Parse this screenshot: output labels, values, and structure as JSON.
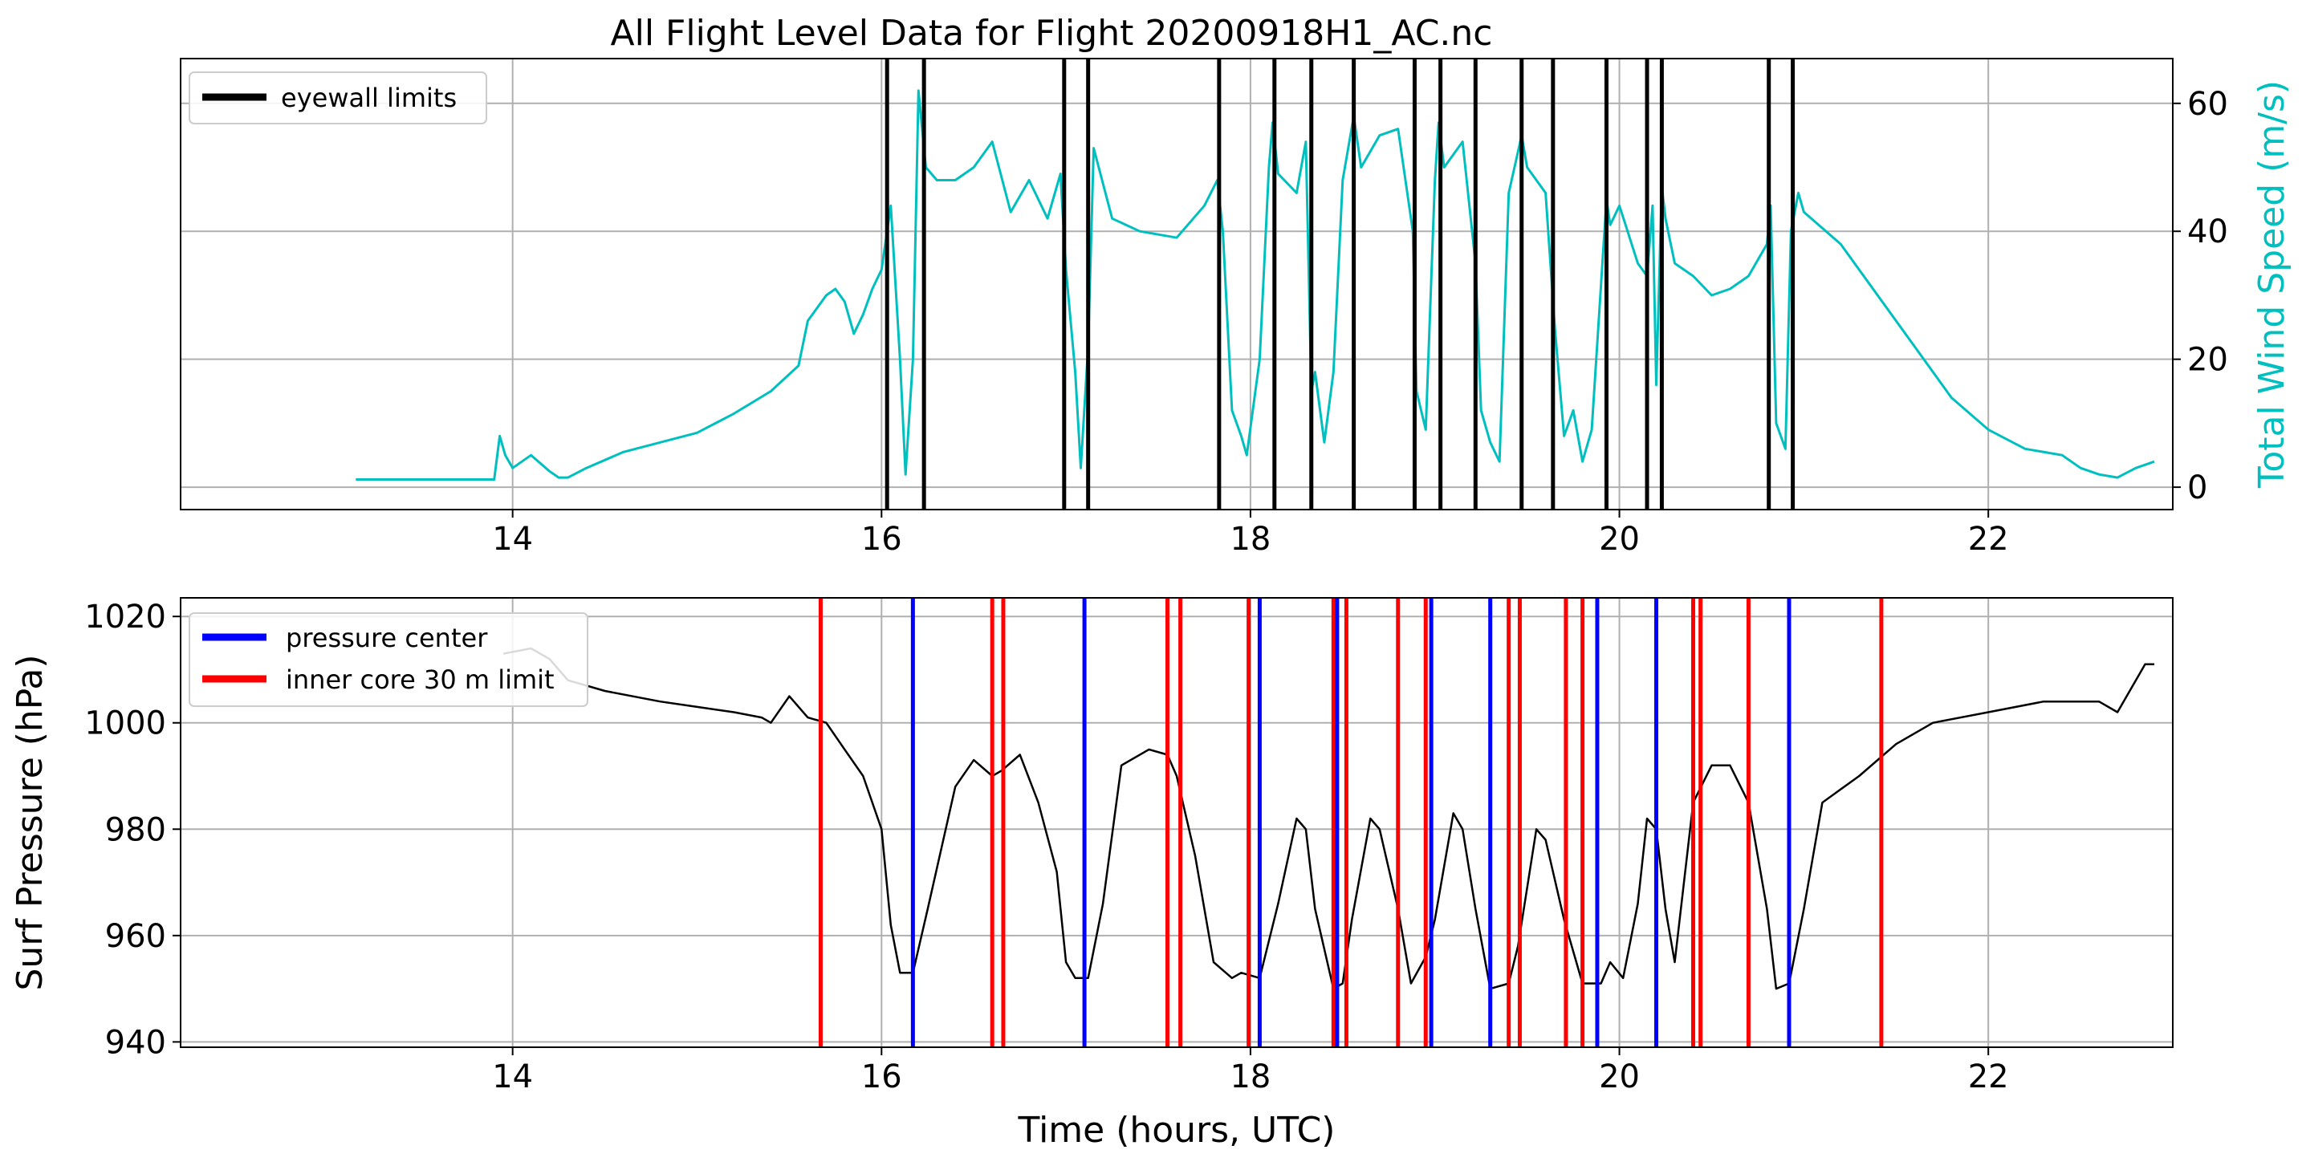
{
  "title": "All Flight Level Data for Flight 20200918H1_AC.nc",
  "colors": {
    "wind": "#00bfbf",
    "pressure": "#000000",
    "eyewall": "#000000",
    "center": "#0000ff",
    "inner_core": "#ff0000",
    "grid": "#b0b0b0"
  },
  "chart_data": [
    {
      "type": "line",
      "panel": "top",
      "ylabel": "Total Wind Speed (m/s)",
      "ylabel_side": "right",
      "xlim": [
        12.2,
        23.0
      ],
      "ylim": [
        -3.5,
        67
      ],
      "xticks": [
        14,
        16,
        18,
        20,
        22
      ],
      "xtick_labels": [
        "14",
        "16",
        "18",
        "20",
        "22"
      ],
      "yticks": [
        0,
        20,
        40,
        60
      ],
      "ytick_labels": [
        "0",
        "20",
        "40",
        "60"
      ],
      "grid": true,
      "legend": {
        "placement": "top-left",
        "entries": [
          {
            "label": "eyewall limits",
            "color": "#000000"
          }
        ]
      },
      "series": [
        {
          "name": "",
          "color": "#00bfbf",
          "x": [
            13.15,
            13.9,
            13.93,
            13.96,
            14.0,
            14.1,
            14.2,
            14.25,
            14.3,
            14.4,
            14.6,
            14.8,
            15.0,
            15.2,
            15.4,
            15.55,
            15.6,
            15.7,
            15.75,
            15.8,
            15.85,
            15.9,
            15.95,
            16.0,
            16.05,
            16.1,
            16.13,
            16.17,
            16.2,
            16.24,
            16.3,
            16.4,
            16.5,
            16.6,
            16.7,
            16.8,
            16.9,
            16.97,
            17.0,
            17.05,
            17.08,
            17.12,
            17.15,
            17.25,
            17.4,
            17.6,
            17.75,
            17.82,
            17.85,
            17.9,
            17.95,
            17.98,
            18.05,
            18.1,
            18.12,
            18.15,
            18.25,
            18.3,
            18.33,
            18.35,
            18.4,
            18.45,
            18.5,
            18.56,
            18.6,
            18.7,
            18.8,
            18.88,
            18.9,
            18.95,
            19.0,
            19.02,
            19.05,
            19.15,
            19.22,
            19.25,
            19.3,
            19.35,
            19.4,
            19.47,
            19.5,
            19.6,
            19.65,
            19.7,
            19.75,
            19.8,
            19.85,
            19.93,
            19.95,
            20.0,
            20.1,
            20.15,
            20.18,
            20.2,
            20.23,
            20.25,
            20.3,
            20.4,
            20.5,
            20.6,
            20.7,
            20.8,
            20.82,
            20.85,
            20.9,
            20.93,
            20.97,
            21.0,
            21.2,
            21.4,
            21.6,
            21.8,
            22.0,
            22.2,
            22.4,
            22.5,
            22.6,
            22.7,
            22.8,
            22.9
          ],
          "values": [
            1.2,
            1.2,
            8,
            5,
            3,
            5,
            2.5,
            1.5,
            1.5,
            3,
            5.5,
            7,
            8.5,
            11.5,
            15,
            19,
            26,
            30,
            31,
            29,
            24,
            27,
            31,
            34,
            44,
            20,
            2,
            20,
            62,
            50,
            48,
            48,
            50,
            54,
            43,
            48,
            42,
            49,
            34,
            18,
            3,
            22,
            53,
            42,
            40,
            39,
            44,
            48,
            40,
            12,
            8,
            5,
            20,
            50,
            57,
            49,
            46,
            54,
            15,
            18,
            7,
            18,
            48,
            58,
            50,
            55,
            56,
            40,
            15,
            9,
            48,
            57,
            50,
            54,
            35,
            12,
            7,
            4,
            46,
            55,
            50,
            46,
            25,
            8,
            12,
            4,
            9,
            45,
            41,
            44,
            35,
            33,
            44,
            16,
            47,
            42,
            35,
            33,
            30,
            31,
            33,
            38,
            44,
            10,
            6,
            40,
            46,
            43,
            38,
            30,
            22,
            14,
            9,
            6,
            5,
            3,
            2,
            1.5,
            3,
            4
          ]
        }
      ],
      "eyewall_limits_x": [
        16.03,
        16.23,
        16.99,
        17.12,
        17.83,
        18.13,
        18.33,
        18.56,
        18.89,
        19.03,
        19.22,
        19.47,
        19.64,
        19.93,
        20.15,
        20.23,
        20.81,
        20.94
      ]
    },
    {
      "type": "line",
      "panel": "bottom",
      "xlabel": "Time (hours, UTC)",
      "ylabel": "Surf Pressure (hPa)",
      "xlim": [
        12.2,
        23.0
      ],
      "ylim": [
        939,
        1023.5
      ],
      "xticks": [
        14,
        16,
        18,
        20,
        22
      ],
      "xtick_labels": [
        "14",
        "16",
        "18",
        "20",
        "22"
      ],
      "yticks": [
        940,
        960,
        980,
        1000,
        1020
      ],
      "ytick_labels": [
        "940",
        "960",
        "980",
        "1000",
        "1020"
      ],
      "grid": true,
      "legend": {
        "placement": "top-left",
        "entries": [
          {
            "label": "pressure center",
            "color": "#0000ff"
          },
          {
            "label": "inner core 30 m limit",
            "color": "#ff0000"
          }
        ]
      },
      "series": [
        {
          "name": "",
          "color": "#000000",
          "x": [
            13.95,
            14.1,
            14.2,
            14.3,
            14.5,
            14.8,
            15.0,
            15.2,
            15.35,
            15.4,
            15.5,
            15.6,
            15.7,
            15.8,
            15.9,
            16.0,
            16.05,
            16.1,
            16.17,
            16.25,
            16.4,
            16.5,
            16.6,
            16.65,
            16.75,
            16.85,
            16.95,
            17.0,
            17.05,
            17.12,
            17.2,
            17.3,
            17.45,
            17.55,
            17.6,
            17.7,
            17.8,
            17.9,
            17.95,
            18.05,
            18.15,
            18.25,
            18.3,
            18.35,
            18.45,
            18.5,
            18.55,
            18.65,
            18.7,
            18.8,
            18.87,
            18.95,
            19.0,
            19.1,
            19.15,
            19.22,
            19.3,
            19.4,
            19.45,
            19.55,
            19.6,
            19.7,
            19.8,
            19.9,
            19.95,
            20.02,
            20.1,
            20.15,
            20.2,
            20.25,
            20.3,
            20.4,
            20.5,
            20.6,
            20.7,
            20.8,
            20.85,
            20.92,
            21.0,
            21.1,
            21.3,
            21.5,
            21.7,
            22.0,
            22.3,
            22.6,
            22.7,
            22.8,
            22.85,
            22.9
          ],
          "values": [
            1013,
            1014,
            1012,
            1008,
            1006,
            1004,
            1003,
            1002,
            1001,
            1000,
            1005,
            1001,
            1000,
            995,
            990,
            980,
            962,
            953,
            953,
            965,
            988,
            993,
            990,
            991,
            994,
            985,
            972,
            955,
            952,
            952,
            966,
            992,
            995,
            994,
            990,
            975,
            955,
            952,
            953,
            952,
            966,
            982,
            980,
            965,
            950,
            951,
            963,
            982,
            980,
            965,
            951,
            956,
            963,
            983,
            980,
            965,
            950,
            951,
            958,
            980,
            978,
            963,
            951,
            951,
            955,
            952,
            966,
            982,
            980,
            965,
            955,
            985,
            992,
            992,
            985,
            965,
            950,
            951,
            965,
            985,
            990,
            996,
            1000,
            1002,
            1004,
            1004,
            1002,
            1008,
            1011,
            1011
          ]
        }
      ],
      "pressure_center_x": [
        16.17,
        17.1,
        18.05,
        18.47,
        18.98,
        19.3,
        19.88,
        20.2,
        20.92
      ],
      "inner_core_limits_x": [
        15.67,
        16.6,
        16.66,
        17.55,
        17.62,
        17.99,
        18.45,
        18.52,
        18.8,
        18.95,
        19.4,
        19.46,
        19.71,
        19.8,
        20.4,
        20.44,
        20.7,
        21.42
      ]
    }
  ]
}
